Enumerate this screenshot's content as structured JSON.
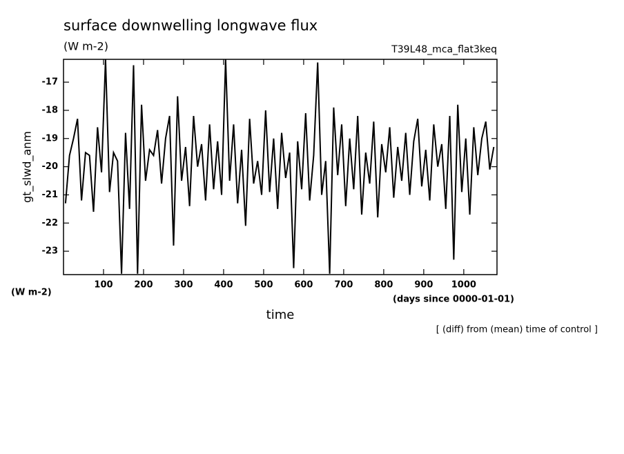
{
  "chart_data": {
    "type": "line",
    "title": "surface downwelling longwave flux",
    "subtitle": "(W m-2)",
    "annotation": "T39L48_mca_flat3keq",
    "y_label": "gt_slwd_anm",
    "y_unit": "(W m-2)",
    "x_unit": "(days since 0000-01-01)",
    "x_label": "time",
    "footnote": "[ (diff) from (mean) time of control ]",
    "x": [
      5,
      15,
      25,
      35,
      45,
      55,
      65,
      75,
      85,
      95,
      105,
      115,
      125,
      135,
      145,
      155,
      165,
      175,
      185,
      195,
      205,
      215,
      225,
      235,
      245,
      255,
      265,
      275,
      285,
      295,
      305,
      315,
      325,
      335,
      345,
      355,
      365,
      375,
      385,
      395,
      405,
      415,
      425,
      435,
      445,
      455,
      465,
      475,
      485,
      495,
      505,
      515,
      525,
      535,
      545,
      555,
      565,
      575,
      585,
      595,
      605,
      615,
      625,
      635,
      645,
      655,
      665,
      675,
      685,
      695,
      705,
      715,
      725,
      735,
      745,
      755,
      765,
      775,
      785,
      795,
      805,
      815,
      825,
      835,
      845,
      855,
      865,
      875,
      885,
      895,
      905,
      915,
      925,
      935,
      945,
      955,
      965,
      975,
      985,
      995,
      1005,
      1015,
      1025,
      1035,
      1045,
      1055,
      1065,
      1075
    ],
    "series": [
      {
        "name": "gt_slwd_anm",
        "color": "#000000",
        "values": [
          -21.3,
          -19.6,
          -19.0,
          -18.3,
          -21.2,
          -19.5,
          -19.6,
          -21.6,
          -18.6,
          -20.2,
          -16.2,
          -20.9,
          -19.5,
          -19.8,
          -23.8,
          -18.8,
          -21.5,
          -16.4,
          -23.8,
          -17.8,
          -20.5,
          -19.4,
          -19.6,
          -18.7,
          -20.6,
          -19.0,
          -18.2,
          -22.8,
          -17.5,
          -20.5,
          -19.3,
          -21.4,
          -18.2,
          -20.0,
          -19.2,
          -21.2,
          -18.5,
          -20.8,
          -19.1,
          -21.0,
          -16.2,
          -20.5,
          -18.5,
          -21.3,
          -19.4,
          -22.1,
          -18.3,
          -20.6,
          -19.8,
          -21.0,
          -18.0,
          -20.9,
          -19.0,
          -21.5,
          -18.8,
          -20.4,
          -19.5,
          -23.6,
          -19.1,
          -20.8,
          -18.1,
          -21.2,
          -19.6,
          -16.3,
          -21.0,
          -19.8,
          -23.8,
          -17.9,
          -20.3,
          -18.5,
          -21.4,
          -19.0,
          -20.8,
          -18.2,
          -21.7,
          -19.5,
          -20.6,
          -18.4,
          -21.8,
          -19.2,
          -20.2,
          -18.6,
          -21.1,
          -19.3,
          -20.5,
          -18.8,
          -21.0,
          -19.1,
          -18.3,
          -20.7,
          -19.4,
          -21.2,
          -18.5,
          -20.0,
          -19.2,
          -21.5,
          -18.2,
          -23.3,
          -17.8,
          -20.9,
          -19.0,
          -21.7,
          -18.6,
          -20.3,
          -19.0,
          -18.4,
          -20.1,
          -19.3
        ]
      }
    ],
    "xlim": [
      0,
      1083
    ],
    "ylim": [
      -23.83,
      -16.19
    ],
    "xticks": [
      100,
      200,
      300,
      400,
      500,
      600,
      700,
      800,
      900,
      1000
    ],
    "yticks": [
      -23,
      -22,
      -21,
      -20,
      -19,
      -18,
      -17
    ]
  }
}
